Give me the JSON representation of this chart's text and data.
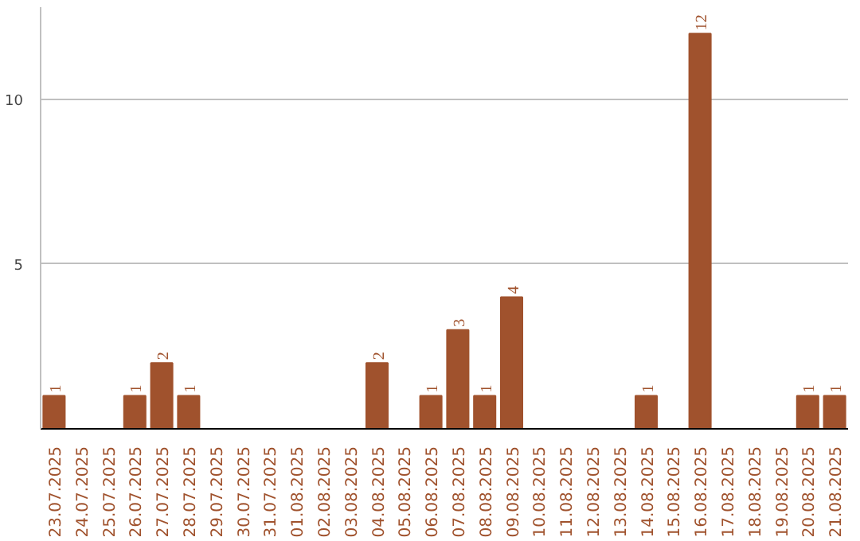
{
  "chart_data": {
    "type": "bar",
    "categories": [
      "23.07.2025",
      "24.07.2025",
      "25.07.2025",
      "26.07.2025",
      "27.07.2025",
      "28.07.2025",
      "29.07.2025",
      "30.07.2025",
      "31.07.2025",
      "01.08.2025",
      "02.08.2025",
      "03.08.2025",
      "04.08.2025",
      "05.08.2025",
      "06.08.2025",
      "07.08.2025",
      "08.08.2025",
      "09.08.2025",
      "10.08.2025",
      "11.08.2025",
      "12.08.2025",
      "13.08.2025",
      "14.08.2025",
      "15.08.2025",
      "16.08.2025",
      "17.08.2025",
      "18.08.2025",
      "19.08.2025",
      "20.08.2025",
      "21.08.2025"
    ],
    "values": [
      1,
      0,
      0,
      1,
      2,
      1,
      0,
      0,
      0,
      0,
      0,
      0,
      2,
      0,
      1,
      3,
      1,
      4,
      0,
      0,
      0,
      0,
      1,
      0,
      12,
      0,
      0,
      0,
      1,
      1
    ],
    "value_labels": [
      "1",
      null,
      null,
      "1",
      "2",
      "1",
      null,
      null,
      null,
      null,
      null,
      null,
      "2",
      null,
      "1",
      "3",
      "1",
      "4",
      null,
      null,
      null,
      null,
      "1",
      null,
      "12",
      null,
      null,
      null,
      "1",
      "1"
    ],
    "color": "#a0522d",
    "ylim": [
      0,
      12.8
    ],
    "yticks": [
      5,
      10
    ],
    "grid": "y"
  }
}
